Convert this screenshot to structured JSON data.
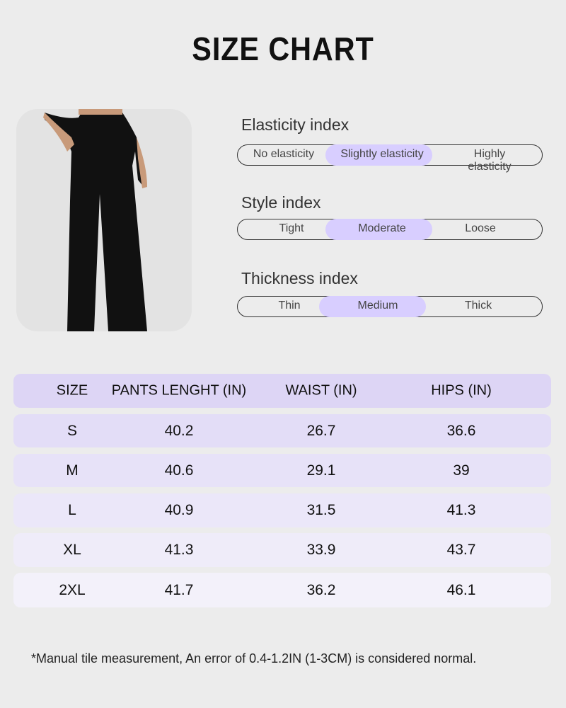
{
  "title": "SIZE CHART",
  "indices": [
    {
      "label": "Elasticity index",
      "options": [
        "No elasticity",
        "Slightly elasticity",
        "Highly elasticity"
      ],
      "selected": 1
    },
    {
      "label": "Style index",
      "options": [
        "Tight",
        "Moderate",
        "Loose"
      ],
      "selected": 1
    },
    {
      "label": "Thickness index",
      "options": [
        "Thin",
        "Medium",
        "Thick"
      ],
      "selected": 1
    }
  ],
  "colors": {
    "highlight": "#d8ceff",
    "header": "#ddd5f5",
    "background": "#ececec"
  },
  "table": {
    "headers": [
      "SIZE",
      "PANTS LENGHT (IN)",
      "WAIST (IN)",
      "HIPS (IN)"
    ],
    "rows": [
      [
        "S",
        "40.2",
        "26.7",
        "36.6"
      ],
      [
        "M",
        "40.6",
        "29.1",
        "39"
      ],
      [
        "L",
        "40.9",
        "31.5",
        "41.3"
      ],
      [
        "XL",
        "41.3",
        "33.9",
        "43.7"
      ],
      [
        "2XL",
        "41.7",
        "36.2",
        "46.1"
      ]
    ]
  },
  "note": "*Manual tile measurement, An error of 0.4-1.2IN (1-3CM) is considered normal."
}
